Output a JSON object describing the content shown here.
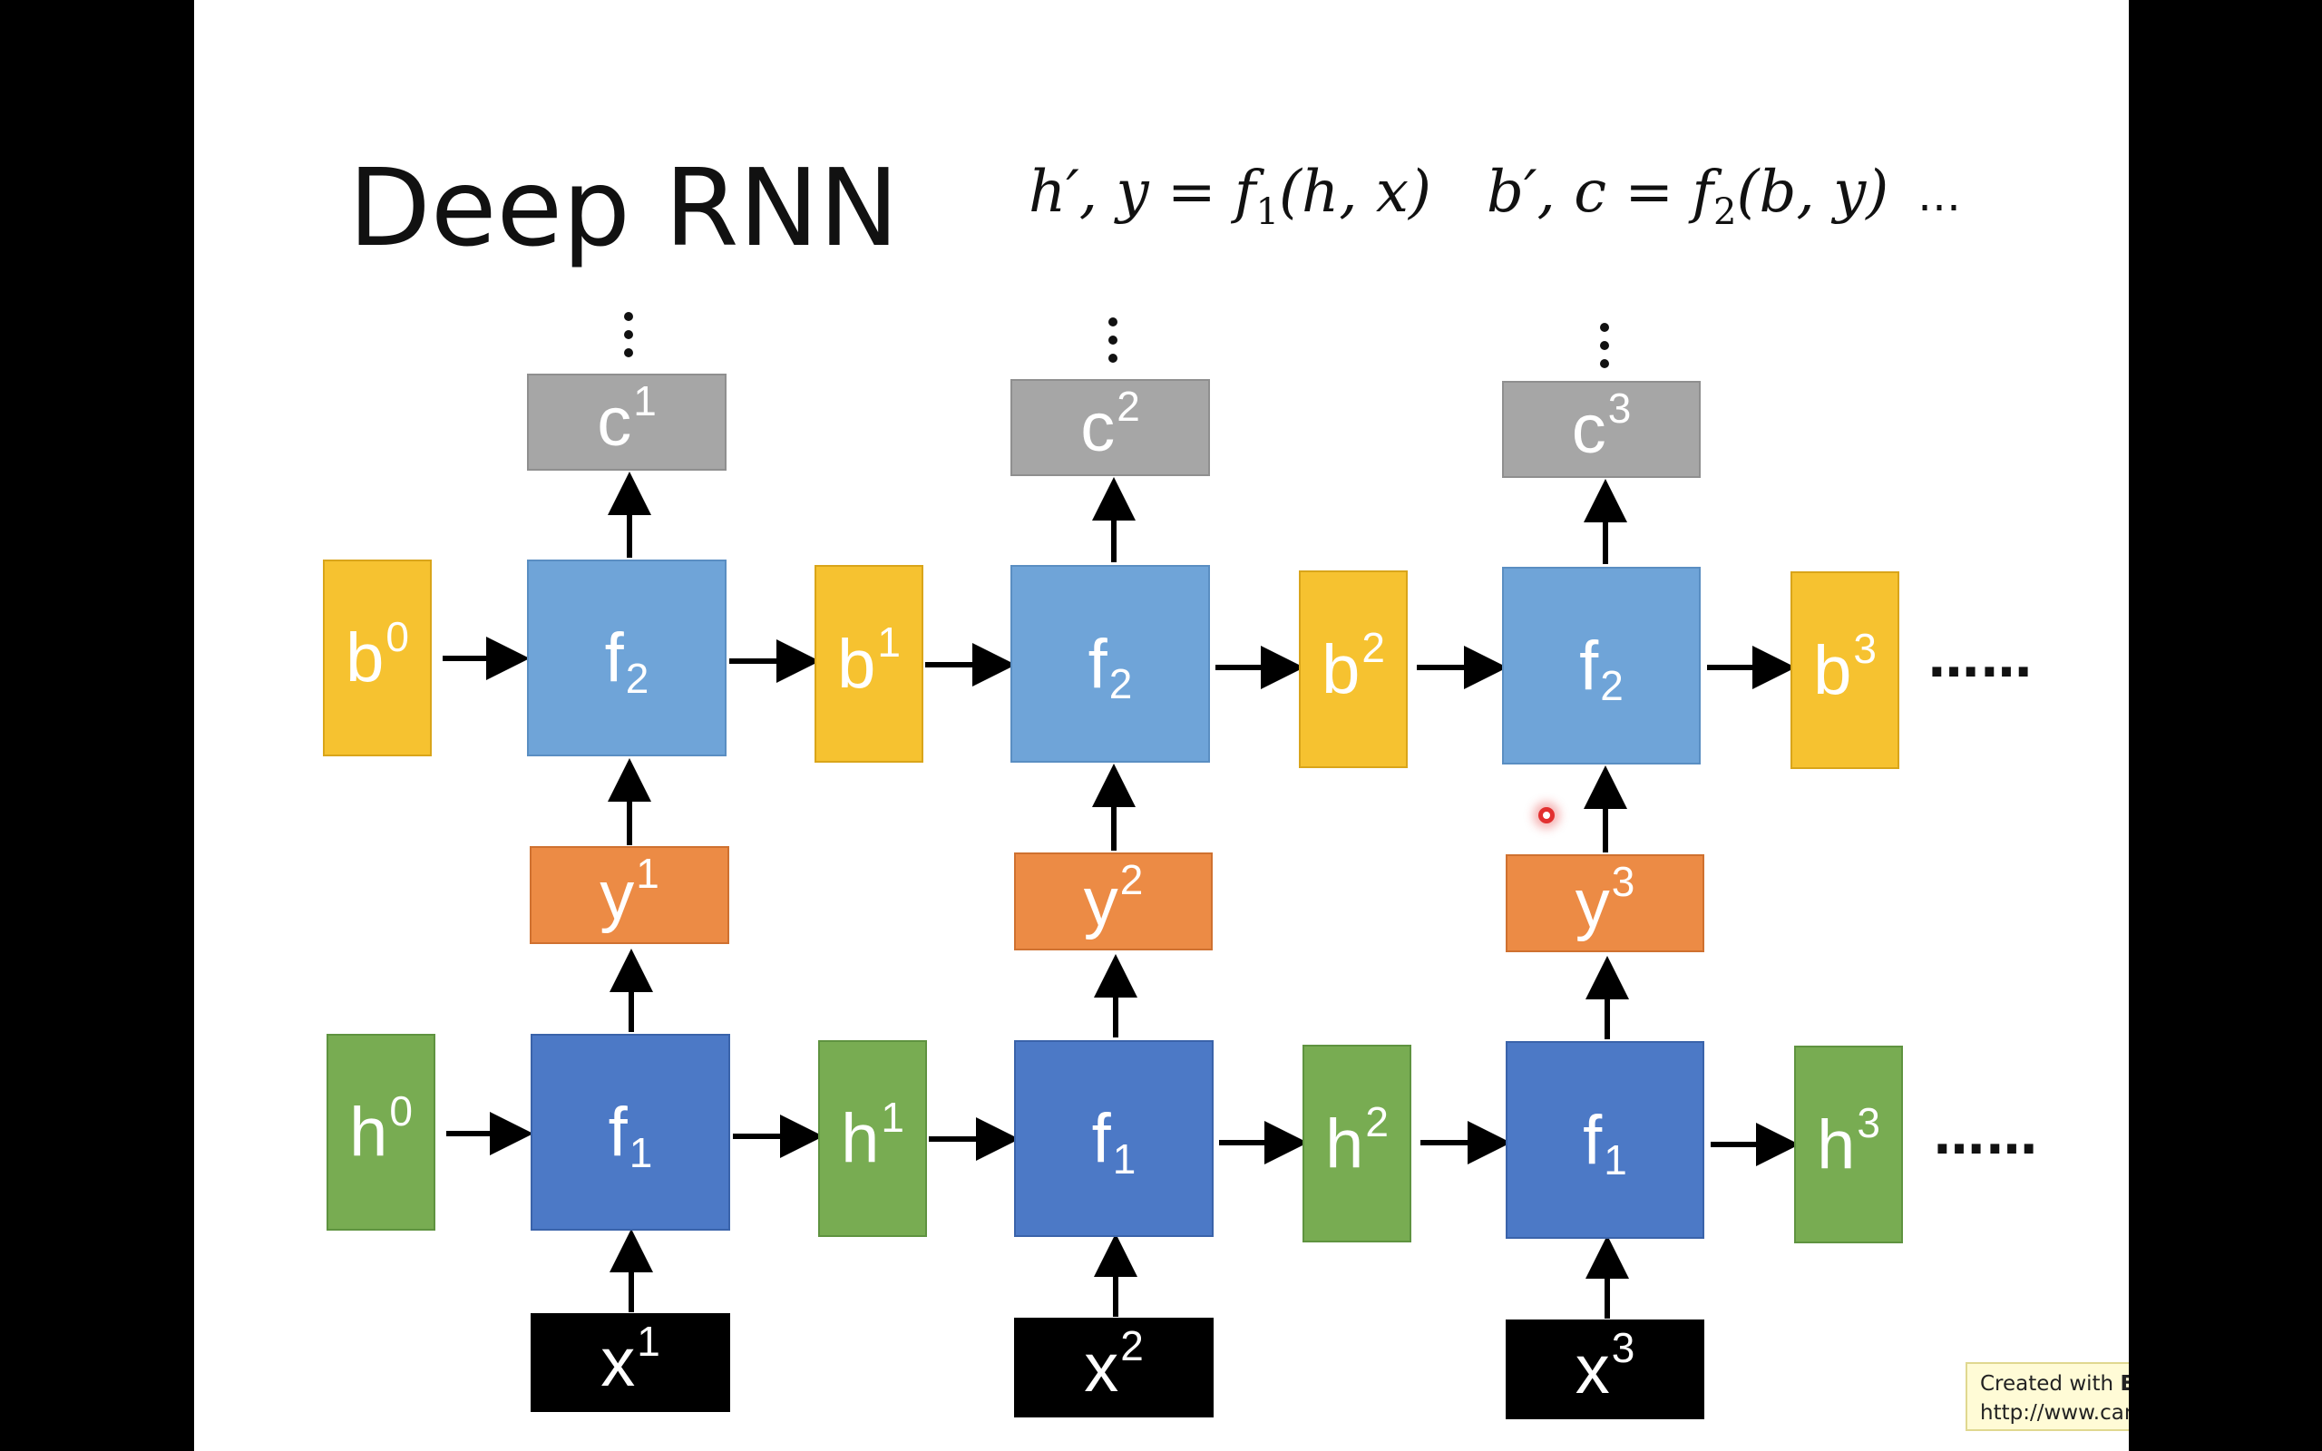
{
  "slide": {
    "title": "Deep RNN",
    "formula_1": {
      "lhs": "h′, y",
      "fn": "f",
      "sub": "1",
      "args": "(h, x)"
    },
    "formula_2": {
      "lhs": "b′, c",
      "fn": "f",
      "sub": "2",
      "args": "(b, y)"
    },
    "formula_ellipsis": "…",
    "row_ellipsis": "……"
  },
  "layer2": {
    "outputs": [
      {
        "base": "c",
        "sup": "1"
      },
      {
        "base": "c",
        "sup": "2"
      },
      {
        "base": "c",
        "sup": "3"
      }
    ],
    "states": [
      {
        "base": "b",
        "sup": "0"
      },
      {
        "base": "b",
        "sup": "1"
      },
      {
        "base": "b",
        "sup": "2"
      },
      {
        "base": "b",
        "sup": "3"
      }
    ],
    "cells": [
      {
        "base": "f",
        "sub": "2"
      },
      {
        "base": "f",
        "sub": "2"
      },
      {
        "base": "f",
        "sub": "2"
      }
    ]
  },
  "middle": {
    "outputs": [
      {
        "base": "y",
        "sup": "1"
      },
      {
        "base": "y",
        "sup": "2"
      },
      {
        "base": "y",
        "sup": "3"
      }
    ]
  },
  "layer1": {
    "states": [
      {
        "base": "h",
        "sup": "0"
      },
      {
        "base": "h",
        "sup": "1"
      },
      {
        "base": "h",
        "sup": "2"
      },
      {
        "base": "h",
        "sup": "3"
      }
    ],
    "cells": [
      {
        "base": "f",
        "sub": "1"
      },
      {
        "base": "f",
        "sub": "1"
      },
      {
        "base": "f",
        "sub": "1"
      }
    ],
    "inputs": [
      {
        "base": "x",
        "sup": "1"
      },
      {
        "base": "x",
        "sup": "2"
      },
      {
        "base": "x",
        "sup": "3"
      }
    ]
  },
  "watermark": {
    "line1_prefix": "Created with ",
    "brand": "EverCam",
    "line1_suffix": ".",
    "line2": "http://www.camdemy.com"
  },
  "colors": {
    "output_gray": "#a6a6a6",
    "state_b_yellow": "#f6c230",
    "cell_f2_lightblue": "#6fa4d8",
    "y_orange": "#ec8b45",
    "state_h_green": "#78ac52",
    "cell_f1_blue": "#4c79c6",
    "input_black": "#000000"
  },
  "icons": {
    "cursor": "red-pointer-dot-icon"
  }
}
